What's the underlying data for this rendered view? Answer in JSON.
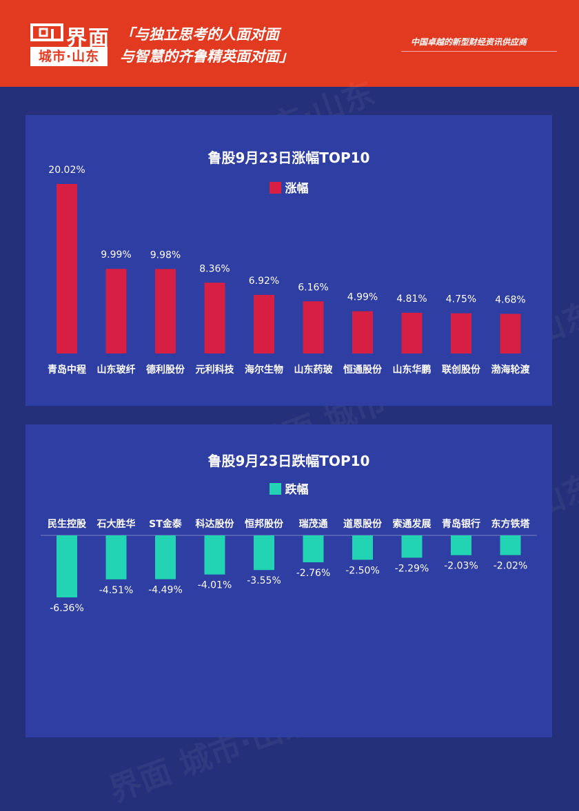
{
  "header": {
    "logo_name": "界面",
    "logo_sub": "城市·山东",
    "slogan_line1": "「与独立思考的人面对面",
    "slogan_line2": "与智慧的齐鲁精英面对面」",
    "tagline": "中国卓越的新型财经资讯供应商"
  },
  "colors": {
    "header_bg": "#e23a20",
    "page_bg": "#25307a",
    "panel_bg": "#2f3ea2",
    "gain_bar": "#d71f43",
    "loss_bar": "#22d3b4"
  },
  "chart_data": [
    {
      "type": "bar",
      "title": "鲁股9月23日涨幅TOP10",
      "legend": "涨幅",
      "categories": [
        "青岛中程",
        "山东玻纤",
        "德利股份",
        "元利科技",
        "海尔生物",
        "山东药玻",
        "恒通股份",
        "山东华鹏",
        "联创股份",
        "渤海轮渡"
      ],
      "values": [
        20.02,
        9.99,
        9.98,
        8.36,
        6.92,
        6.16,
        4.99,
        4.81,
        4.75,
        4.68
      ],
      "labels": [
        "20.02%",
        "9.99%",
        "9.98%",
        "8.36%",
        "6.92%",
        "6.16%",
        "4.99%",
        "4.81%",
        "4.75%",
        "4.68%"
      ],
      "ylim": [
        0,
        20.02
      ],
      "grid": false,
      "legend_position": "top"
    },
    {
      "type": "bar",
      "title": "鲁股9月23日跌幅TOP10",
      "legend": "跌幅",
      "categories": [
        "民生控股",
        "石大胜华",
        "ST金泰",
        "科达股份",
        "恒邦股份",
        "瑞茂通",
        "道恩股份",
        "索通发展",
        "青岛银行",
        "东方铁塔"
      ],
      "values": [
        -6.36,
        -4.51,
        -4.49,
        -4.01,
        -3.55,
        -2.76,
        -2.5,
        -2.29,
        -2.03,
        -2.02
      ],
      "labels": [
        "-6.36%",
        "-4.51%",
        "-4.49%",
        "-4.01%",
        "-3.55%",
        "-2.76%",
        "-2.50%",
        "-2.29%",
        "-2.03%",
        "-2.02%"
      ],
      "ylim": [
        -6.36,
        0
      ],
      "grid": false,
      "legend_position": "top"
    }
  ]
}
